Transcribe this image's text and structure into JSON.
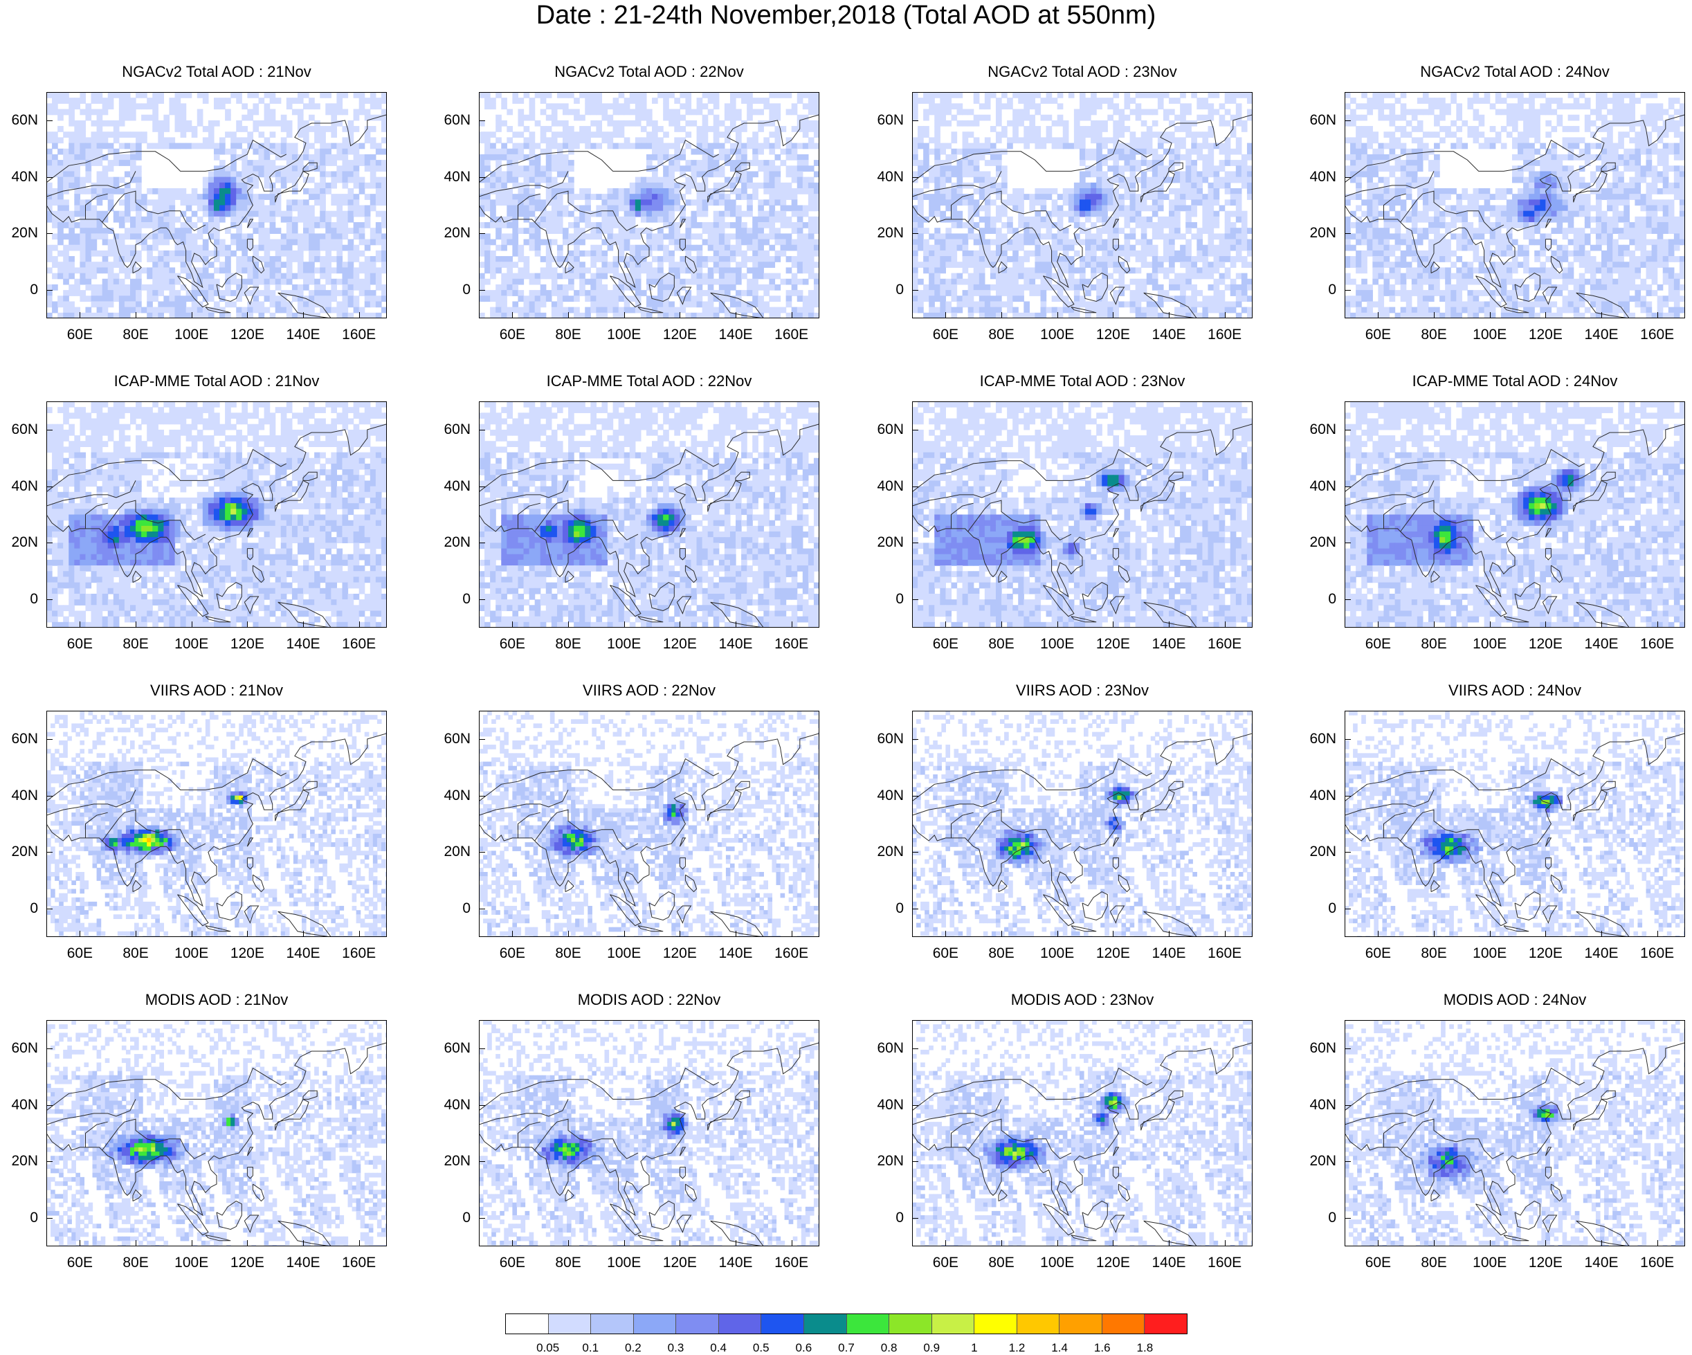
{
  "title": "Date : 21-24th November,2018 (Total AOD at 550nm)",
  "colors": {
    "land_outline": "#2b2b2b",
    "frame": "#000000",
    "colorbar": [
      "#ffffff",
      "#d2dcff",
      "#b4c6fa",
      "#8ca8f7",
      "#7f8df2",
      "#6065e8",
      "#1e55f0",
      "#0a8c8c",
      "#3ce63c",
      "#8ce628",
      "#c8f046",
      "#ffff00",
      "#ffc800",
      "#ffa000",
      "#ff7800",
      "#ff1e1e"
    ]
  },
  "colorbar": {
    "labels": [
      "0.05",
      "0.1",
      "0.2",
      "0.3",
      "0.4",
      "0.5",
      "0.6",
      "0.7",
      "0.8",
      "0.9",
      "1",
      "1.2",
      "1.4",
      "1.6",
      "1.8"
    ]
  },
  "axes": {
    "lon_labels": [
      "60E",
      "80E",
      "100E",
      "120E",
      "140E",
      "160E"
    ],
    "lat_labels": [
      "60N",
      "40N",
      "20N",
      "0"
    ],
    "lon_values": [
      60,
      80,
      100,
      120,
      140,
      160
    ],
    "lat_values": [
      60,
      40,
      20,
      0
    ],
    "lon_range": [
      48,
      170
    ],
    "lat_range": [
      -10,
      70
    ]
  },
  "panels": [
    {
      "id": "ngac-21",
      "title": "NGACv2 Total AOD : 21Nov",
      "product": "NGACv2",
      "day": "21Nov"
    },
    {
      "id": "ngac-22",
      "title": "NGACv2 Total AOD : 22Nov",
      "product": "NGACv2",
      "day": "22Nov"
    },
    {
      "id": "ngac-23",
      "title": "NGACv2 Total AOD : 23Nov",
      "product": "NGACv2",
      "day": "23Nov"
    },
    {
      "id": "ngac-24",
      "title": "NGACv2 Total AOD : 24Nov",
      "product": "NGACv2",
      "day": "24Nov"
    },
    {
      "id": "icap-21",
      "title": "ICAP-MME Total AOD : 21Nov",
      "product": "ICAP-MME",
      "day": "21Nov"
    },
    {
      "id": "icap-22",
      "title": "ICAP-MME Total AOD : 22Nov",
      "product": "ICAP-MME",
      "day": "22Nov"
    },
    {
      "id": "icap-23",
      "title": "ICAP-MME Total AOD : 23Nov",
      "product": "ICAP-MME",
      "day": "23Nov"
    },
    {
      "id": "icap-24",
      "title": "ICAP-MME Total AOD : 24Nov",
      "product": "ICAP-MME",
      "day": "24Nov"
    },
    {
      "id": "viirs-21",
      "title": "VIIRS AOD : 21Nov",
      "product": "VIIRS",
      "day": "21Nov"
    },
    {
      "id": "viirs-22",
      "title": "VIIRS AOD : 22Nov",
      "product": "VIIRS",
      "day": "22Nov"
    },
    {
      "id": "viirs-23",
      "title": "VIIRS AOD : 23Nov",
      "product": "VIIRS",
      "day": "23Nov"
    },
    {
      "id": "viirs-24",
      "title": "VIIRS AOD : 24Nov",
      "product": "VIIRS",
      "day": "24Nov"
    },
    {
      "id": "modis-21",
      "title": "MODIS AOD : 21Nov",
      "product": "MODIS",
      "day": "21Nov"
    },
    {
      "id": "modis-22",
      "title": "MODIS AOD : 22Nov",
      "product": "MODIS",
      "day": "22Nov"
    },
    {
      "id": "modis-23",
      "title": "MODIS AOD : 23Nov",
      "product": "MODIS",
      "day": "23Nov"
    },
    {
      "id": "modis-24",
      "title": "MODIS AOD : 24Nov",
      "product": "MODIS",
      "day": "24Nov"
    }
  ]
}
